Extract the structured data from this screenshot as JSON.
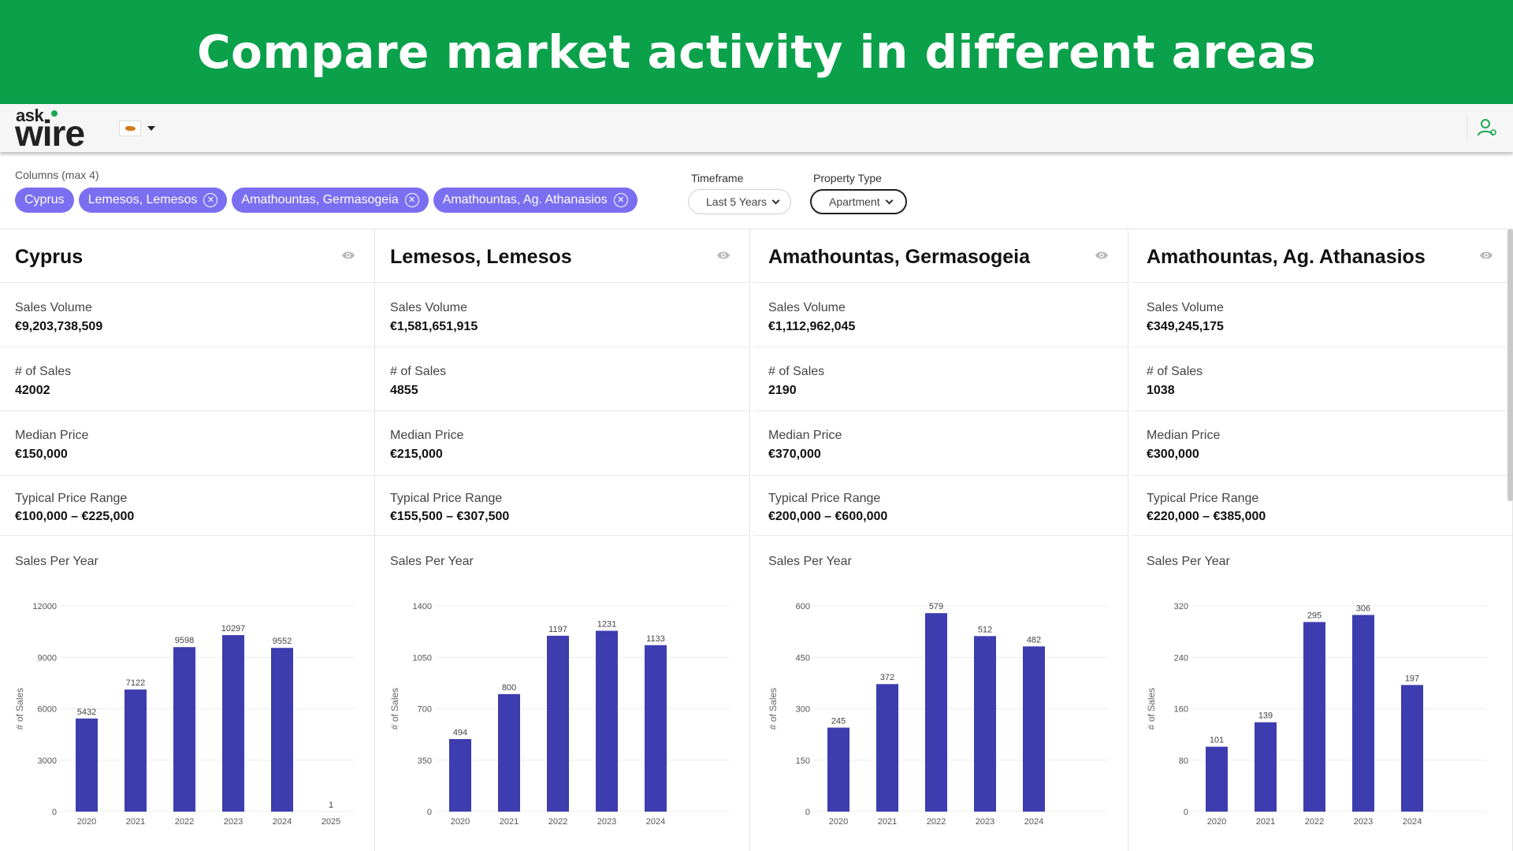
{
  "banner": {
    "title": "Compare market activity in different areas"
  },
  "navbar": {
    "logo_top": "ask",
    "logo_main": "wire",
    "flag_icon": "cyprus-flag-icon",
    "user_icon": "user-icon",
    "accent": "#19a84f"
  },
  "filters": {
    "columns_label": "Columns (max 4)",
    "chips": [
      {
        "label": "Cyprus",
        "removable": false
      },
      {
        "label": "Lemesos, Lemesos",
        "removable": true
      },
      {
        "label": "Amathountas, Germasogeia",
        "removable": true
      },
      {
        "label": "Amathountas, Ag. Athanasios",
        "removable": true
      }
    ],
    "timeframe_label": "Timeframe",
    "timeframe_value": "Last 5 Years",
    "property_type_label": "Property Type",
    "property_type_value": "Apartment"
  },
  "colors": {
    "banner": "#0aa14a",
    "chip": "#7a6ff0",
    "bar": "#3d3daf"
  },
  "columns": [
    {
      "title": "Cyprus",
      "metrics": [
        {
          "label": "Sales Volume",
          "value": "€9,203,738,509"
        },
        {
          "label": "# of Sales",
          "value": "42002"
        },
        {
          "label": "Median Price",
          "value": "€150,000"
        },
        {
          "label": "Typical Price Range",
          "value": "€100,000 – €225,000"
        }
      ],
      "chart_title": "Sales Per Year"
    },
    {
      "title": "Lemesos, Lemesos",
      "metrics": [
        {
          "label": "Sales Volume",
          "value": "€1,581,651,915"
        },
        {
          "label": "# of Sales",
          "value": "4855"
        },
        {
          "label": "Median Price",
          "value": "€215,000"
        },
        {
          "label": "Typical Price Range",
          "value": "€155,500 – €307,500"
        }
      ],
      "chart_title": "Sales Per Year"
    },
    {
      "title": "Amathountas, Germasogeia",
      "metrics": [
        {
          "label": "Sales Volume",
          "value": "€1,112,962,045"
        },
        {
          "label": "# of Sales",
          "value": "2190"
        },
        {
          "label": "Median Price",
          "value": "€370,000"
        },
        {
          "label": "Typical Price Range",
          "value": "€200,000 – €600,000"
        }
      ],
      "chart_title": "Sales Per Year"
    },
    {
      "title": "Amathountas, Ag. Athanasios",
      "metrics": [
        {
          "label": "Sales Volume",
          "value": "€349,245,175"
        },
        {
          "label": "# of Sales",
          "value": "1038"
        },
        {
          "label": "Median Price",
          "value": "€300,000"
        },
        {
          "label": "Typical Price Range",
          "value": "€220,000 – €385,000"
        }
      ],
      "chart_title": "Sales Per Year"
    }
  ],
  "chart_data": [
    {
      "type": "bar",
      "title": "Sales Per Year",
      "ylabel": "# of Sales",
      "categories": [
        "2020",
        "2021",
        "2022",
        "2023",
        "2024",
        "2025"
      ],
      "values": [
        5432,
        7122,
        9598,
        10297,
        9552,
        1
      ],
      "yticks": [
        0,
        3000,
        6000,
        9000,
        12000
      ],
      "ylim": [
        0,
        12000
      ],
      "grid": true
    },
    {
      "type": "bar",
      "title": "Sales Per Year",
      "ylabel": "# of Sales",
      "categories": [
        "2020",
        "2021",
        "2022",
        "2023",
        "2024"
      ],
      "values": [
        494,
        800,
        1197,
        1231,
        1133
      ],
      "yticks": [
        0,
        350,
        700,
        1050,
        1400
      ],
      "ylim": [
        0,
        1400
      ],
      "grid": true
    },
    {
      "type": "bar",
      "title": "Sales Per Year",
      "ylabel": "# of Sales",
      "categories": [
        "2020",
        "2021",
        "2022",
        "2023",
        "2024"
      ],
      "values": [
        245,
        372,
        579,
        512,
        482
      ],
      "yticks": [
        0,
        150,
        300,
        450,
        600
      ],
      "ylim": [
        0,
        600
      ],
      "grid": true
    },
    {
      "type": "bar",
      "title": "Sales Per Year",
      "ylabel": "# of Sales",
      "categories": [
        "2020",
        "2021",
        "2022",
        "2023",
        "2024"
      ],
      "values": [
        101,
        139,
        295,
        306,
        197
      ],
      "yticks": [
        0,
        80,
        160,
        240,
        320
      ],
      "ylim": [
        0,
        320
      ],
      "grid": true
    }
  ]
}
